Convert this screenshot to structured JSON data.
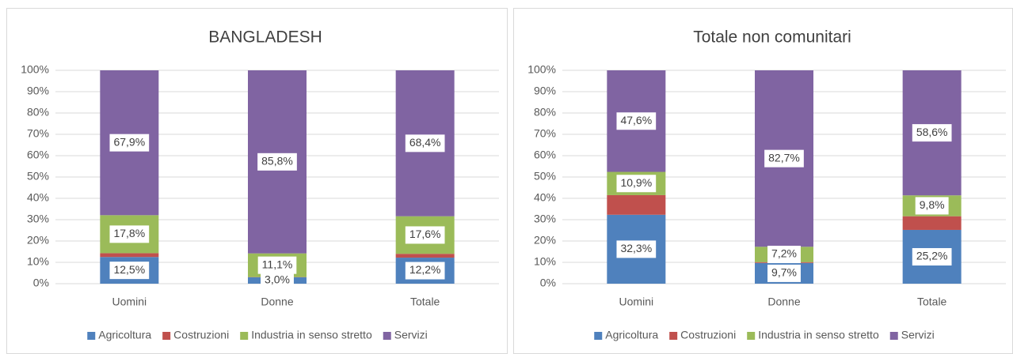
{
  "chart_data": [
    {
      "type": "stacked_bar",
      "title": "BANGLADESH",
      "categories": [
        "Uomini",
        "Donne",
        "Totale"
      ],
      "series": [
        {
          "name": "Agricoltura",
          "color": "#4f81bd",
          "values": [
            12.5,
            3.0,
            12.2
          ],
          "value_labels": [
            "12,5%",
            "3,0%",
            "12,2%"
          ]
        },
        {
          "name": "Costruzioni",
          "color": "#c0504d",
          "values": [
            1.8,
            0.1,
            1.8
          ]
        },
        {
          "name": "Industria in senso stretto",
          "color": "#9bbb59",
          "values": [
            17.8,
            11.1,
            17.6
          ],
          "value_labels": [
            "17,8%",
            "11,1%",
            "17,6%"
          ]
        },
        {
          "name": "Servizi",
          "color": "#8064a2",
          "values": [
            67.9,
            85.8,
            68.4
          ],
          "value_labels": [
            "67,9%",
            "85,8%",
            "68,4%"
          ]
        }
      ],
      "ylim": [
        0,
        100
      ],
      "yticks": [
        {
          "value": 0,
          "label": "0%"
        },
        {
          "value": 10,
          "label": "10%"
        },
        {
          "value": 20,
          "label": "20%"
        },
        {
          "value": 30,
          "label": "30%"
        },
        {
          "value": 40,
          "label": "40%"
        },
        {
          "value": 50,
          "label": "50%"
        },
        {
          "value": 60,
          "label": "60%"
        },
        {
          "value": 70,
          "label": "70%"
        },
        {
          "value": 80,
          "label": "80%"
        },
        {
          "value": 90,
          "label": "90%"
        },
        {
          "value": 100,
          "label": "100%"
        }
      ],
      "grid": true,
      "legend": "bottom"
    },
    {
      "type": "stacked_bar",
      "title": "Totale non comunitari",
      "categories": [
        "Uomini",
        "Donne",
        "Totale"
      ],
      "series": [
        {
          "name": "Agricoltura",
          "color": "#4f81bd",
          "values": [
            32.3,
            9.7,
            25.2
          ],
          "value_labels": [
            "32,3%",
            "9,7%",
            "25,2%"
          ]
        },
        {
          "name": "Costruzioni",
          "color": "#c0504d",
          "values": [
            9.2,
            0.4,
            6.4
          ]
        },
        {
          "name": "Industria in senso stretto",
          "color": "#9bbb59",
          "values": [
            10.9,
            7.2,
            9.8
          ],
          "value_labels": [
            "10,9%",
            "7,2%",
            "9,8%"
          ]
        },
        {
          "name": "Servizi",
          "color": "#8064a2",
          "values": [
            47.6,
            82.7,
            58.6
          ],
          "value_labels": [
            "47,6%",
            "82,7%",
            "58,6%"
          ]
        }
      ],
      "ylim": [
        0,
        100
      ],
      "yticks": [
        {
          "value": 0,
          "label": "0%"
        },
        {
          "value": 10,
          "label": "10%"
        },
        {
          "value": 20,
          "label": "20%"
        },
        {
          "value": 30,
          "label": "30%"
        },
        {
          "value": 40,
          "label": "40%"
        },
        {
          "value": 50,
          "label": "50%"
        },
        {
          "value": 60,
          "label": "60%"
        },
        {
          "value": 70,
          "label": "70%"
        },
        {
          "value": 80,
          "label": "80%"
        },
        {
          "value": 90,
          "label": "90%"
        },
        {
          "value": 100,
          "label": "100%"
        }
      ],
      "grid": true,
      "legend": "bottom"
    }
  ]
}
